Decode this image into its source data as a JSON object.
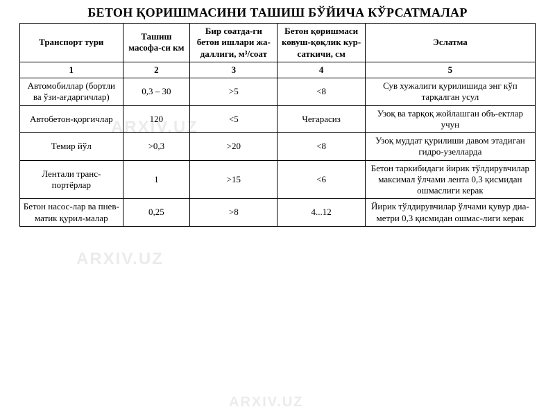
{
  "title": "БЕТОН ҚОРИШМАСИНИ ТАШИШ БЎЙИЧА КЎРСАТМАЛАР",
  "watermark": "ARXIV.UZ",
  "table": {
    "columns": [
      "Транспорт тури",
      "Ташиш масофа-си км",
      "Бир соатда-ги бетон ишлари жа-даллиги, м³/соат",
      "Бетон қоришмаси ковуш-қоқлик кур-саткичи, см",
      "Эслатма"
    ],
    "col_nums": [
      "1",
      "2",
      "3",
      "4",
      "5"
    ],
    "rows": [
      [
        "Автомобиллар (бортли ва ўзи-ағдаргичлар)",
        "0,3 – 30",
        ">5",
        "<8",
        "Сув хужалиги қурилишида энг кўп  тарқалган усул"
      ],
      [
        "Автобетон-қоргичлар",
        "120",
        "<5",
        "Чегарасиз",
        "Узоқ ва тарқоқ жойлашган объ-ектлар учун"
      ],
      [
        "Темир йўл",
        ">0,3",
        ">20",
        "<8",
        "Узоқ муддат қурилиши давом этадиган гидро-узелларда"
      ],
      [
        "Лентали транс-портёрлар",
        "1",
        ">15",
        "<6",
        "Бетон таркибидаги йирик тўлдирувчилар максимал ўлчами лента 0,3 қисмидан ошмаслиги керак"
      ],
      [
        "Бетон насос-лар ва пнев-матик қурил-малар",
        "0,25",
        ">8",
        "4...12",
        "Йирик тўлдирувчилар ўлчами қувур диа-метри 0,3 қисмидан ошмас-лиги керак"
      ]
    ],
    "border_color": "#000000",
    "text_color": "#000000",
    "background_color": "#ffffff",
    "header_fontsize": 13,
    "cell_fontsize": 13,
    "col_widths_pct": [
      20,
      13,
      17,
      17,
      33
    ]
  }
}
